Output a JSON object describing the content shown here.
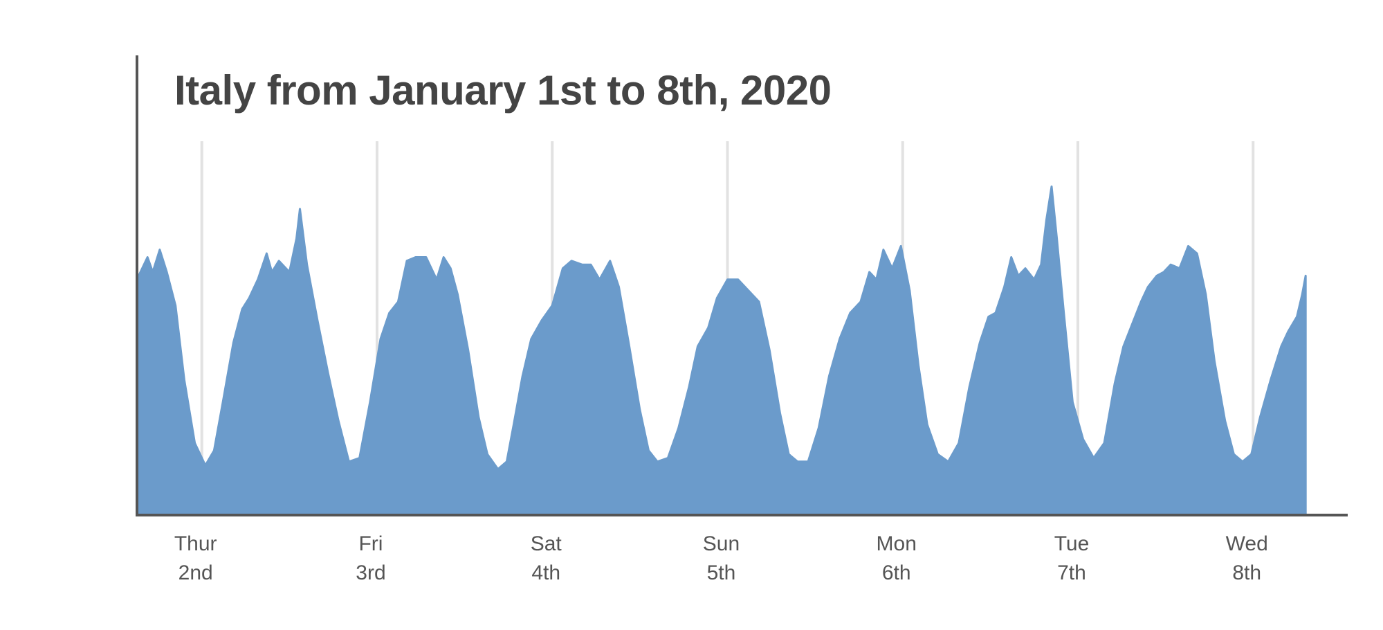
{
  "chart_data": {
    "type": "area",
    "title": "Italy from January 1st to 8th, 2020",
    "xlabel": "",
    "ylabel": "",
    "x_unit": "day",
    "xlim": [
      1.63,
      8.54
    ],
    "ylim": [
      0,
      1
    ],
    "grid": "vertical",
    "legend": "none",
    "color": "#6b9bcb",
    "ticks": [
      {
        "x": 2,
        "day": "Thur",
        "date": "2nd"
      },
      {
        "x": 3,
        "day": "Fri",
        "date": "3rd"
      },
      {
        "x": 4,
        "day": "Sat",
        "date": "4th"
      },
      {
        "x": 5,
        "day": "Sun",
        "date": "5th"
      },
      {
        "x": 6,
        "day": "Mon",
        "date": "6th"
      },
      {
        "x": 7,
        "day": "Tue",
        "date": "7th"
      },
      {
        "x": 8,
        "day": "Wed",
        "date": "8th"
      }
    ],
    "gridlines": [
      2,
      3,
      4,
      5,
      6,
      7,
      8
    ],
    "series": [
      {
        "values": [
          [
            1.64,
            0.64
          ],
          [
            1.69,
            0.69
          ],
          [
            1.72,
            0.65
          ],
          [
            1.76,
            0.71
          ],
          [
            1.8,
            0.65
          ],
          [
            1.85,
            0.56
          ],
          [
            1.9,
            0.36
          ],
          [
            1.96,
            0.19
          ],
          [
            2.02,
            0.13
          ],
          [
            2.07,
            0.17
          ],
          [
            2.12,
            0.3
          ],
          [
            2.18,
            0.46
          ],
          [
            2.23,
            0.55
          ],
          [
            2.27,
            0.58
          ],
          [
            2.32,
            0.63
          ],
          [
            2.37,
            0.7
          ],
          [
            2.4,
            0.65
          ],
          [
            2.44,
            0.68
          ],
          [
            2.5,
            0.65
          ],
          [
            2.54,
            0.74
          ],
          [
            2.56,
            0.82
          ],
          [
            2.6,
            0.67
          ],
          [
            2.66,
            0.52
          ],
          [
            2.72,
            0.38
          ],
          [
            2.78,
            0.25
          ],
          [
            2.84,
            0.14
          ],
          [
            2.9,
            0.15
          ],
          [
            2.96,
            0.3
          ],
          [
            3.02,
            0.47
          ],
          [
            3.07,
            0.54
          ],
          [
            3.12,
            0.57
          ],
          [
            3.17,
            0.68
          ],
          [
            3.22,
            0.69
          ],
          [
            3.28,
            0.69
          ],
          [
            3.34,
            0.63
          ],
          [
            3.38,
            0.69
          ],
          [
            3.42,
            0.66
          ],
          [
            3.46,
            0.59
          ],
          [
            3.52,
            0.44
          ],
          [
            3.58,
            0.26
          ],
          [
            3.63,
            0.16
          ],
          [
            3.69,
            0.12
          ],
          [
            3.74,
            0.14
          ],
          [
            3.78,
            0.24
          ],
          [
            3.83,
            0.37
          ],
          [
            3.88,
            0.47
          ],
          [
            3.94,
            0.52
          ],
          [
            4.0,
            0.56
          ],
          [
            4.06,
            0.66
          ],
          [
            4.11,
            0.68
          ],
          [
            4.17,
            0.67
          ],
          [
            4.22,
            0.67
          ],
          [
            4.27,
            0.63
          ],
          [
            4.33,
            0.68
          ],
          [
            4.38,
            0.61
          ],
          [
            4.44,
            0.45
          ],
          [
            4.5,
            0.28
          ],
          [
            4.55,
            0.17
          ],
          [
            4.6,
            0.14
          ],
          [
            4.66,
            0.15
          ],
          [
            4.72,
            0.23
          ],
          [
            4.78,
            0.34
          ],
          [
            4.83,
            0.45
          ],
          [
            4.89,
            0.5
          ],
          [
            4.94,
            0.58
          ],
          [
            5.0,
            0.63
          ],
          [
            5.06,
            0.63
          ],
          [
            5.12,
            0.6
          ],
          [
            5.18,
            0.57
          ],
          [
            5.24,
            0.44
          ],
          [
            5.3,
            0.27
          ],
          [
            5.35,
            0.16
          ],
          [
            5.4,
            0.14
          ],
          [
            5.46,
            0.14
          ],
          [
            5.52,
            0.23
          ],
          [
            5.58,
            0.37
          ],
          [
            5.64,
            0.47
          ],
          [
            5.7,
            0.54
          ],
          [
            5.76,
            0.57
          ],
          [
            5.81,
            0.65
          ],
          [
            5.85,
            0.63
          ],
          [
            5.89,
            0.71
          ],
          [
            5.94,
            0.66
          ],
          [
            5.99,
            0.72
          ],
          [
            6.04,
            0.6
          ],
          [
            6.09,
            0.4
          ],
          [
            6.14,
            0.24
          ],
          [
            6.2,
            0.16
          ],
          [
            6.26,
            0.14
          ],
          [
            6.32,
            0.19
          ],
          [
            6.38,
            0.34
          ],
          [
            6.44,
            0.46
          ],
          [
            6.49,
            0.53
          ],
          [
            6.53,
            0.54
          ],
          [
            6.58,
            0.61
          ],
          [
            6.62,
            0.69
          ],
          [
            6.66,
            0.64
          ],
          [
            6.7,
            0.66
          ],
          [
            6.75,
            0.63
          ],
          [
            6.79,
            0.67
          ],
          [
            6.82,
            0.79
          ],
          [
            6.85,
            0.88
          ],
          [
            6.88,
            0.74
          ],
          [
            6.92,
            0.54
          ],
          [
            6.97,
            0.3
          ],
          [
            7.03,
            0.2
          ],
          [
            7.09,
            0.15
          ],
          [
            7.15,
            0.19
          ],
          [
            7.21,
            0.35
          ],
          [
            7.26,
            0.45
          ],
          [
            7.31,
            0.51
          ],
          [
            7.36,
            0.57
          ],
          [
            7.4,
            0.61
          ],
          [
            7.45,
            0.64
          ],
          [
            7.49,
            0.65
          ],
          [
            7.53,
            0.67
          ],
          [
            7.58,
            0.66
          ],
          [
            7.63,
            0.72
          ],
          [
            7.68,
            0.7
          ],
          [
            7.73,
            0.59
          ],
          [
            7.78,
            0.41
          ],
          [
            7.84,
            0.25
          ],
          [
            7.89,
            0.16
          ],
          [
            7.94,
            0.14
          ],
          [
            7.99,
            0.16
          ],
          [
            8.04,
            0.26
          ],
          [
            8.1,
            0.36
          ],
          [
            8.16,
            0.45
          ],
          [
            8.2,
            0.49
          ],
          [
            8.25,
            0.53
          ],
          [
            8.28,
            0.59
          ],
          [
            8.3,
            0.64
          ]
        ]
      }
    ]
  }
}
